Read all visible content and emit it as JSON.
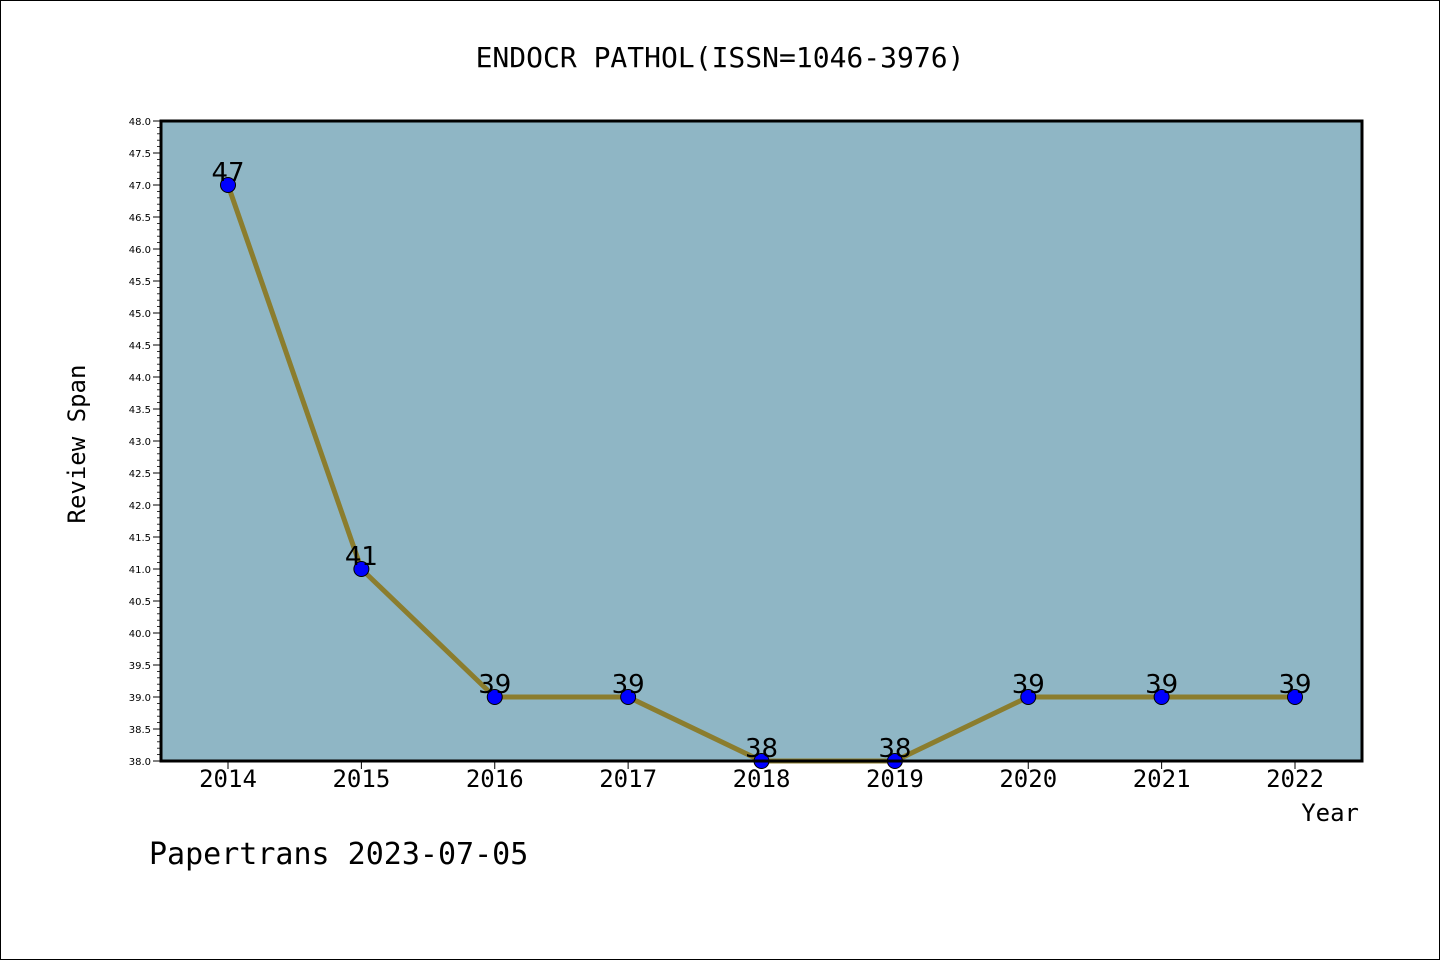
{
  "chart_data": {
    "type": "line",
    "title": "ENDOCR PATHOL(ISSN=1046-3976)",
    "xlabel": "Year",
    "ylabel": "Review Span",
    "x": [
      2014,
      2015,
      2016,
      2017,
      2018,
      2019,
      2020,
      2021,
      2022
    ],
    "series": [
      {
        "values": [
          47,
          41,
          39,
          39,
          38,
          38,
          39,
          39,
          39
        ]
      }
    ],
    "ylim": [
      38.0,
      48.0
    ],
    "yticks": [
      "38.0",
      "38.5",
      "39.0",
      "39.5",
      "40.0",
      "40.5",
      "41.0",
      "41.5",
      "42.0",
      "42.5",
      "43.0",
      "43.5",
      "44.0",
      "44.5",
      "45.0",
      "45.5",
      "46.0",
      "46.5",
      "47.0",
      "47.5",
      "48.0"
    ],
    "grid": false,
    "colors": {
      "plot_background": "#8fb6c5",
      "line": "#8b7d2e",
      "marker": "#0000ff"
    }
  },
  "footer": "Papertrans 2023-07-05"
}
